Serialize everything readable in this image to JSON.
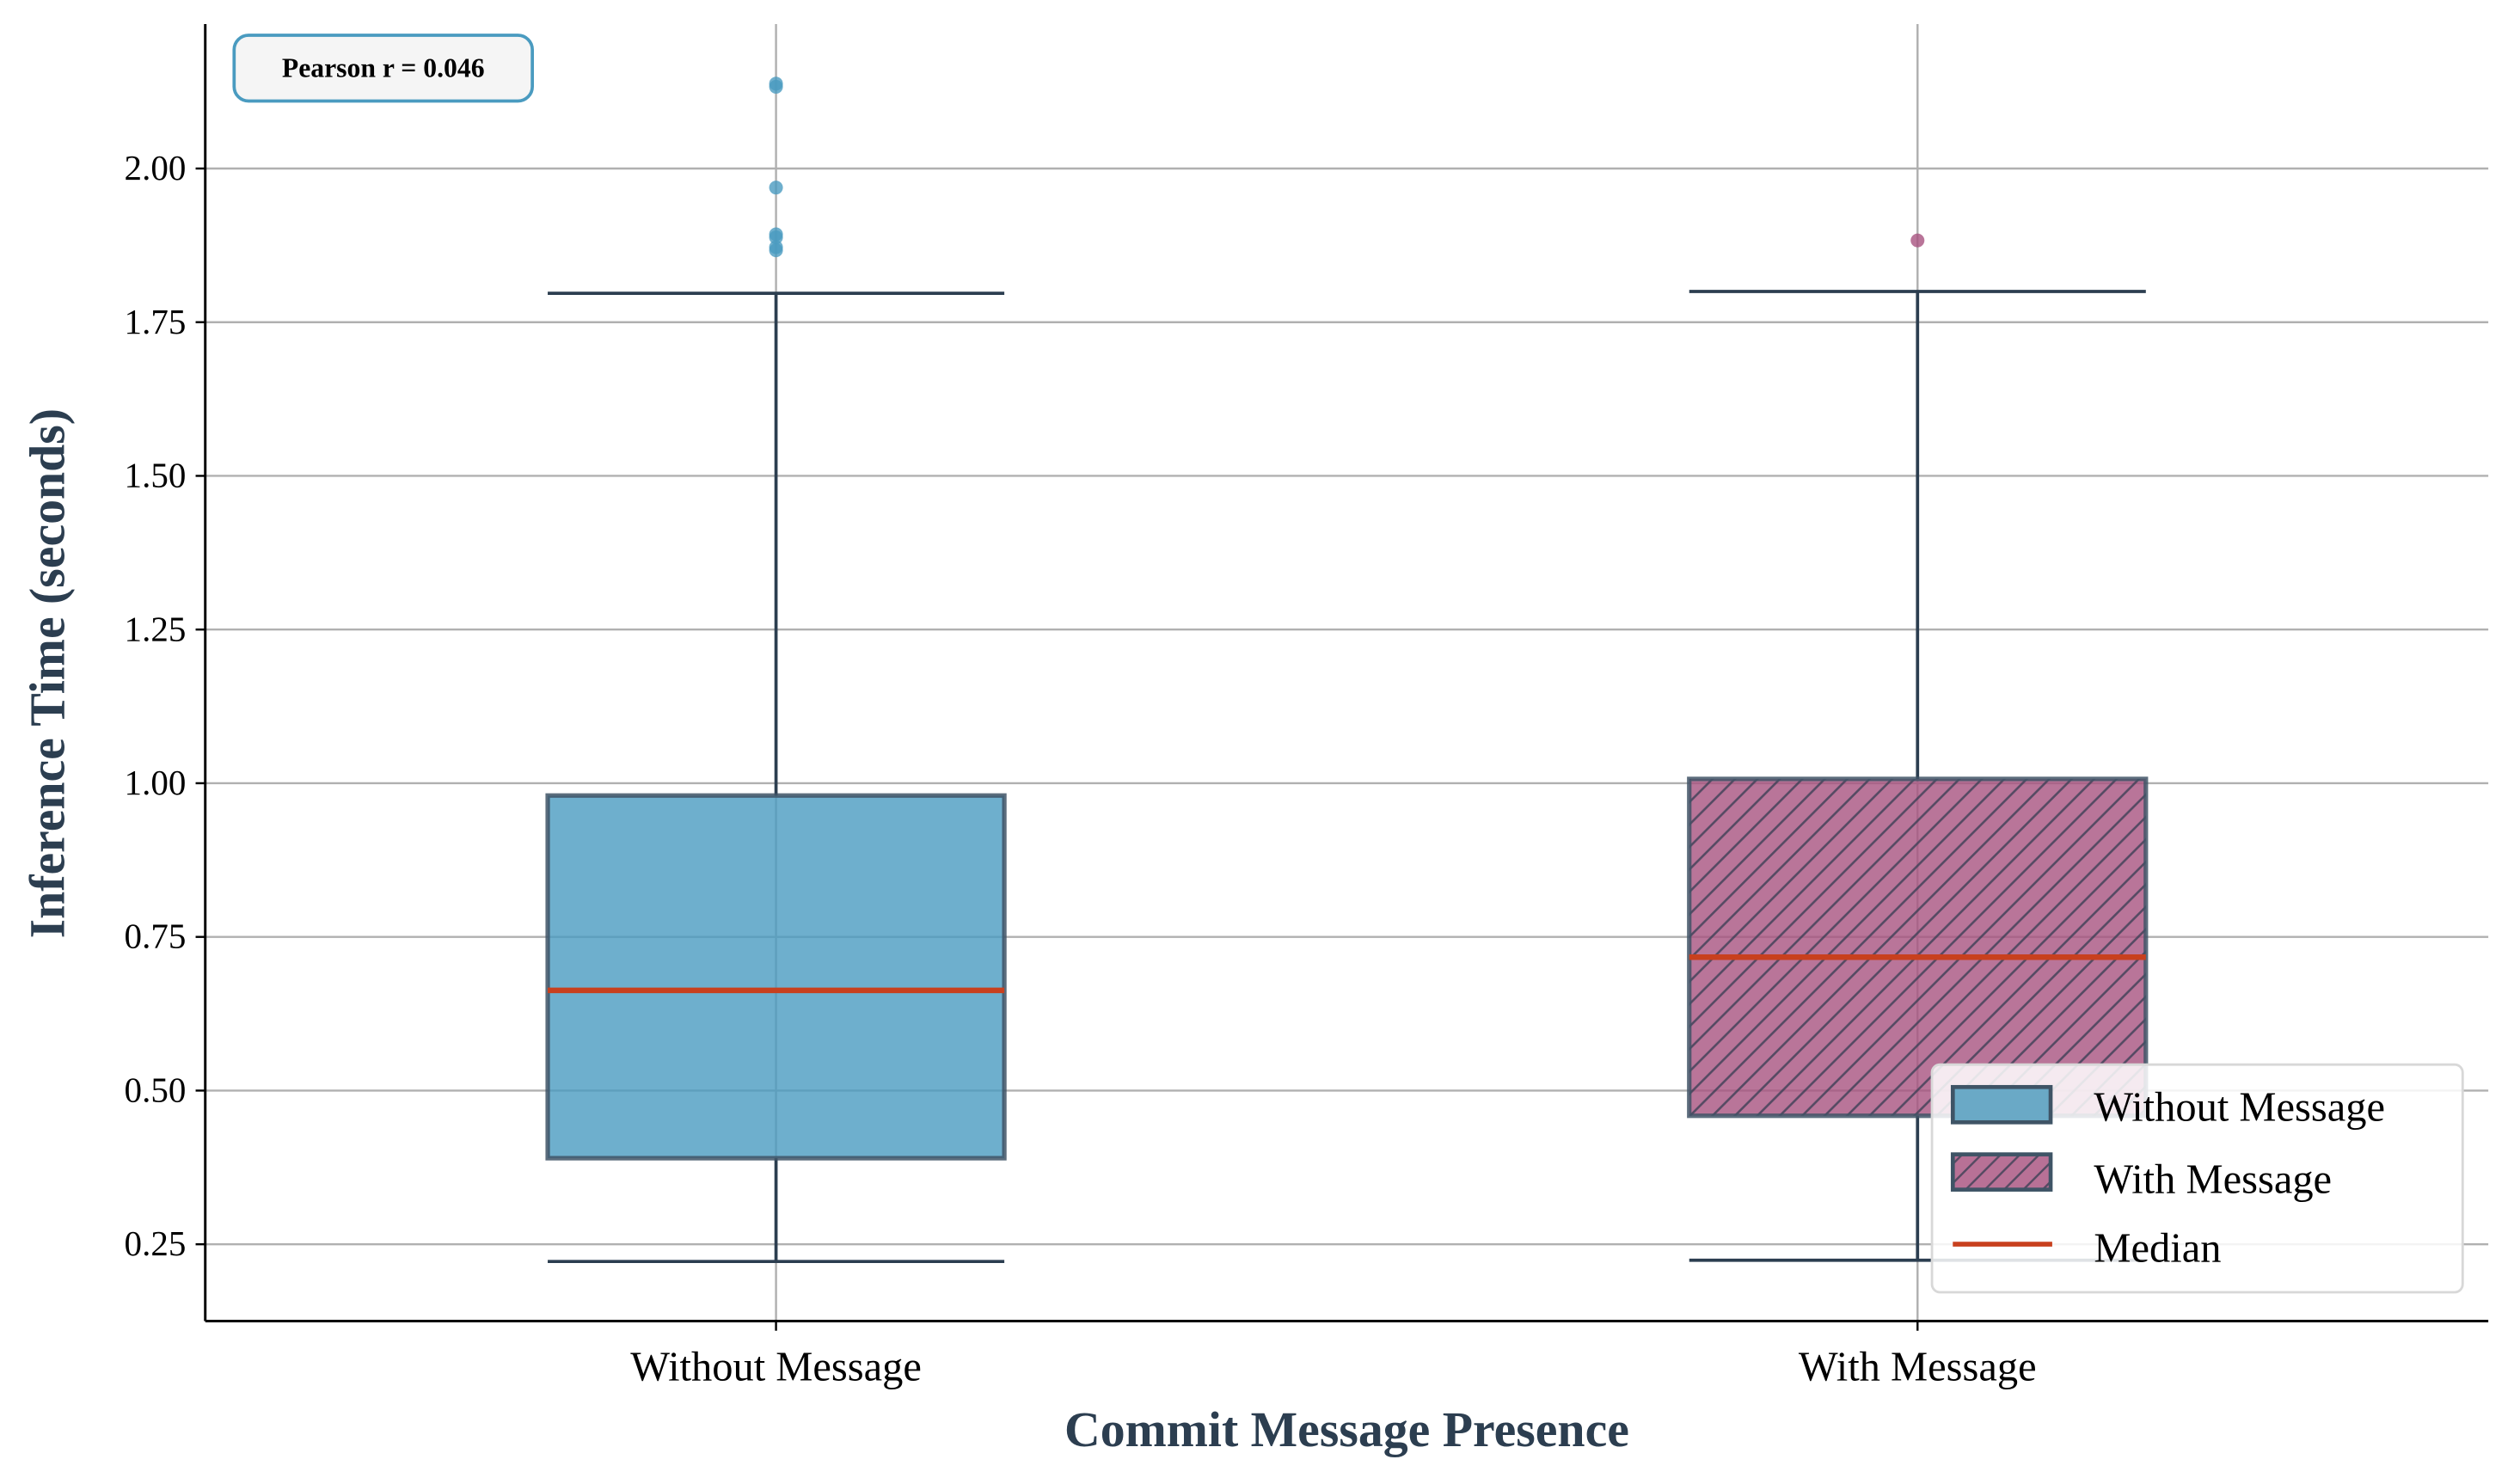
{
  "chart_data": {
    "type": "box",
    "xlabel": "Commit Message Presence",
    "ylabel": "Inference Time (seconds)",
    "ylim": [
      0.125,
      2.235
    ],
    "yticks": [
      "0.25",
      "0.50",
      "0.75",
      "1.00",
      "1.25",
      "1.50",
      "1.75",
      "2.00"
    ],
    "grid": true,
    "annotation": "Pearson r = 0.046",
    "categories": [
      "Without Message",
      "With Message"
    ],
    "boxes": [
      {
        "name": "Without Message",
        "whisker_low": 0.222,
        "q1": 0.39,
        "median": 0.663,
        "q3": 0.98,
        "whisker_high": 1.797,
        "outliers": [
          2.138,
          2.133,
          1.969,
          1.893,
          1.888,
          1.872,
          1.867
        ],
        "color": "#4a9bc0",
        "hatch": false
      },
      {
        "name": "With Message",
        "whisker_low": 0.224,
        "q1": 0.459,
        "median": 0.717,
        "q3": 1.007,
        "whisker_high": 1.8,
        "outliers": [
          1.883
        ],
        "color": "#a8527f",
        "hatch": true
      }
    ],
    "legend": {
      "position": "lower-right",
      "entries": [
        "Without Message",
        "With Message",
        "Median"
      ]
    },
    "colors": {
      "median": "#c8401e",
      "edge": "#2c3e50",
      "grid": "#b0b0b0",
      "label": "#2c3e50",
      "annotation_border": "#4a9bc0"
    }
  }
}
